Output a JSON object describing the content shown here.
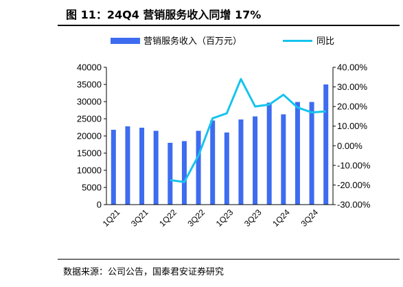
{
  "figure": {
    "title": "图 11：24Q4 营销服务收入同增 17%",
    "source": "数据来源：公司公告，国泰君安证券研究"
  },
  "chart_data": {
    "type": "bar",
    "categories": [
      "1Q21",
      "2Q21",
      "3Q21",
      "4Q21",
      "1Q22",
      "2Q22",
      "3Q22",
      "4Q22",
      "1Q23",
      "2Q23",
      "3Q23",
      "4Q23",
      "1Q24",
      "2Q24",
      "3Q24",
      "4Q24"
    ],
    "x_tick_labels": [
      "1Q21",
      "3Q21",
      "1Q22",
      "3Q22",
      "1Q23",
      "3Q23",
      "1Q24",
      "3Q24"
    ],
    "series": [
      {
        "name": "营销服务收入（百万元）",
        "type": "bar",
        "axis": "left",
        "color": "#3d6cf0",
        "values": [
          21800,
          22800,
          22400,
          21500,
          18000,
          18500,
          21500,
          24500,
          21000,
          24800,
          25700,
          29700,
          26300,
          29900,
          29900,
          35000
        ]
      },
      {
        "name": "同比",
        "type": "line",
        "axis": "right",
        "color": "#17c3ee",
        "values": [
          null,
          null,
          null,
          null,
          -17.5,
          -18.5,
          -5.0,
          14.0,
          16.5,
          34.0,
          20.0,
          21.0,
          26.0,
          19.5,
          17.0,
          17.5
        ]
      }
    ],
    "left_axis": {
      "min": 0,
      "max": 40000,
      "ticks": [
        "0",
        "5000",
        "10000",
        "15000",
        "20000",
        "25000",
        "30000",
        "35000",
        "40000"
      ]
    },
    "right_axis": {
      "min": -30,
      "max": 40,
      "ticks": [
        "-30.00%",
        "-20.00%",
        "-10.00%",
        "0.00%",
        "10.00%",
        "20.00%",
        "30.00%",
        "40.00%"
      ]
    },
    "legend_position": "top"
  }
}
